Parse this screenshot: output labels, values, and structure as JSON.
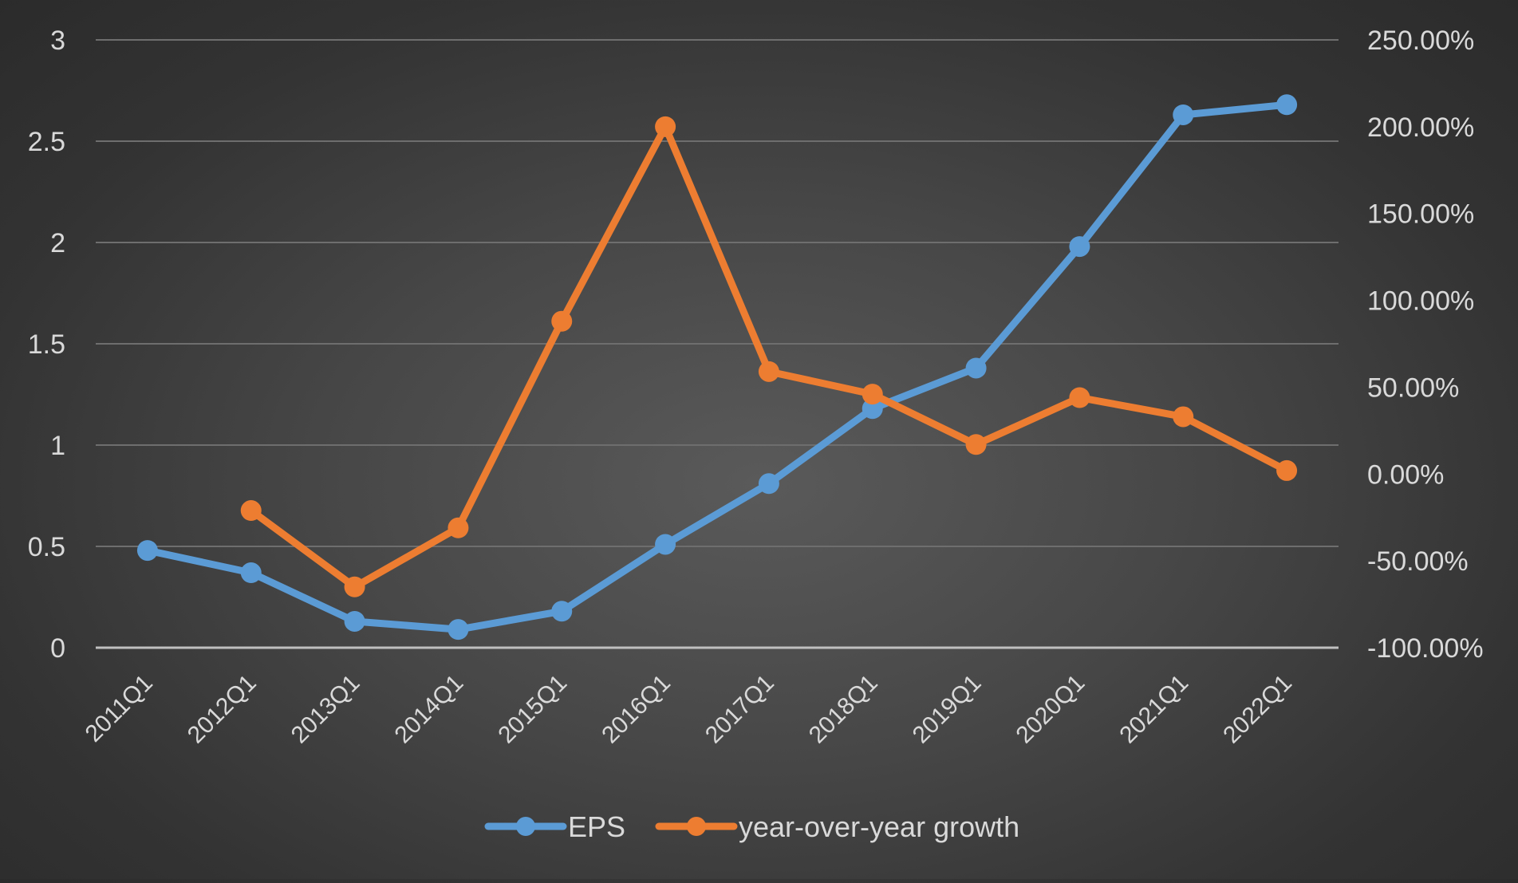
{
  "chart_data": {
    "type": "line",
    "title": "",
    "xlabel": "",
    "ylabel": "",
    "categories": [
      "2011Q1",
      "2012Q1",
      "2013Q1",
      "2014Q1",
      "2015Q1",
      "2016Q1",
      "2017Q1",
      "2018Q1",
      "2019Q1",
      "2020Q1",
      "2021Q1",
      "2022Q1"
    ],
    "y_left": {
      "range": [
        0,
        3
      ],
      "ticks": [
        0,
        0.5,
        1,
        1.5,
        2,
        2.5,
        3
      ],
      "tick_labels": [
        "0",
        "0.5",
        "1",
        "1.5",
        "2",
        "2.5",
        "3"
      ]
    },
    "y_right": {
      "range": [
        -100,
        250
      ],
      "ticks": [
        -100,
        -50,
        0,
        50,
        100,
        150,
        200,
        250
      ],
      "tick_labels": [
        "-100.00%",
        "-50.00%",
        "0.00%",
        "50.00%",
        "100.00%",
        "150.00%",
        "200.00%",
        "250.00%"
      ]
    },
    "grid": true,
    "legend_position": "bottom",
    "series": [
      {
        "name": "EPS",
        "axis": "left",
        "color": "#5b9bd5",
        "values": [
          0.48,
          0.37,
          0.13,
          0.09,
          0.18,
          0.51,
          0.81,
          1.18,
          1.38,
          1.98,
          2.63,
          2.68
        ]
      },
      {
        "name": "year-over-year growth",
        "axis": "right",
        "color": "#ed7d31",
        "values": [
          null,
          -21.0,
          -65.0,
          -31.0,
          88.0,
          200.0,
          59.0,
          46.0,
          17.0,
          44.0,
          33.0,
          2.0
        ]
      }
    ]
  }
}
